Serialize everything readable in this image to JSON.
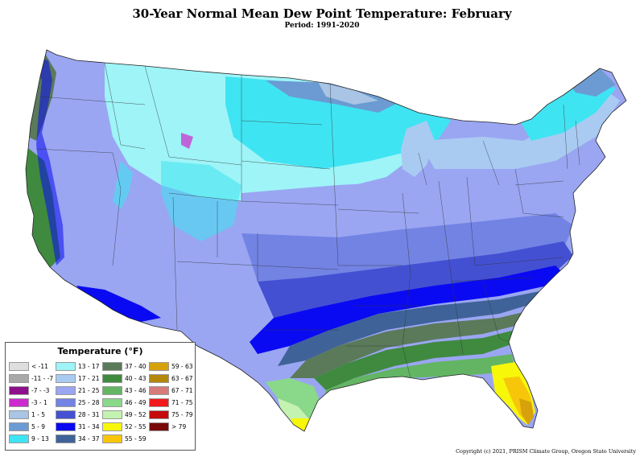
{
  "title": "30-Year Normal Mean Dew Point Temperature: February",
  "subtitle": "Period: 1991-2020",
  "legend": {
    "title": "Temperature (°F)",
    "items": [
      {
        "label": "< -11",
        "color": "#dedede"
      },
      {
        "label": "-11 - -7",
        "color": "#a8a8a8"
      },
      {
        "label": "-7 - -3",
        "color": "#8c0f8c"
      },
      {
        "label": "-3 - 1",
        "color": "#cc2acc"
      },
      {
        "label": "1 - 5",
        "color": "#a9c4e4"
      },
      {
        "label": "5 - 9",
        "color": "#6b9bd2"
      },
      {
        "label": "9 - 13",
        "color": "#3fe4f2"
      },
      {
        "label": "13 - 17",
        "color": "#9ef4f7"
      },
      {
        "label": "17 - 21",
        "color": "#a9cbf2"
      },
      {
        "label": "21 - 25",
        "color": "#9aa6f2"
      },
      {
        "label": "25 - 28",
        "color": "#7383e4"
      },
      {
        "label": "28 - 31",
        "color": "#4450d2"
      },
      {
        "label": "31 - 34",
        "color": "#0a0af2"
      },
      {
        "label": "34 - 37",
        "color": "#3f6398"
      },
      {
        "label": "37 - 40",
        "color": "#5a7a5a"
      },
      {
        "label": "40 - 43",
        "color": "#3f8a3f"
      },
      {
        "label": "43 - 46",
        "color": "#63b563"
      },
      {
        "label": "46 - 49",
        "color": "#8ad88a"
      },
      {
        "label": "49 - 52",
        "color": "#c4f2b0"
      },
      {
        "label": "52 - 55",
        "color": "#f7f70a"
      },
      {
        "label": "55 - 59",
        "color": "#f7c60a"
      },
      {
        "label": "59 - 63",
        "color": "#d6a10a"
      },
      {
        "label": "63 - 67",
        "color": "#b5870a"
      },
      {
        "label": "67 - 71",
        "color": "#d67a7a"
      },
      {
        "label": "71 - 75",
        "color": "#f21a1a"
      },
      {
        "label": "75 - 79",
        "color": "#c40a0a"
      },
      {
        "label": "> 79",
        "color": "#7a0a0a"
      }
    ]
  },
  "copyright": "Copyright (c) 2021, PRISM Climate Group, Oregon State University"
}
